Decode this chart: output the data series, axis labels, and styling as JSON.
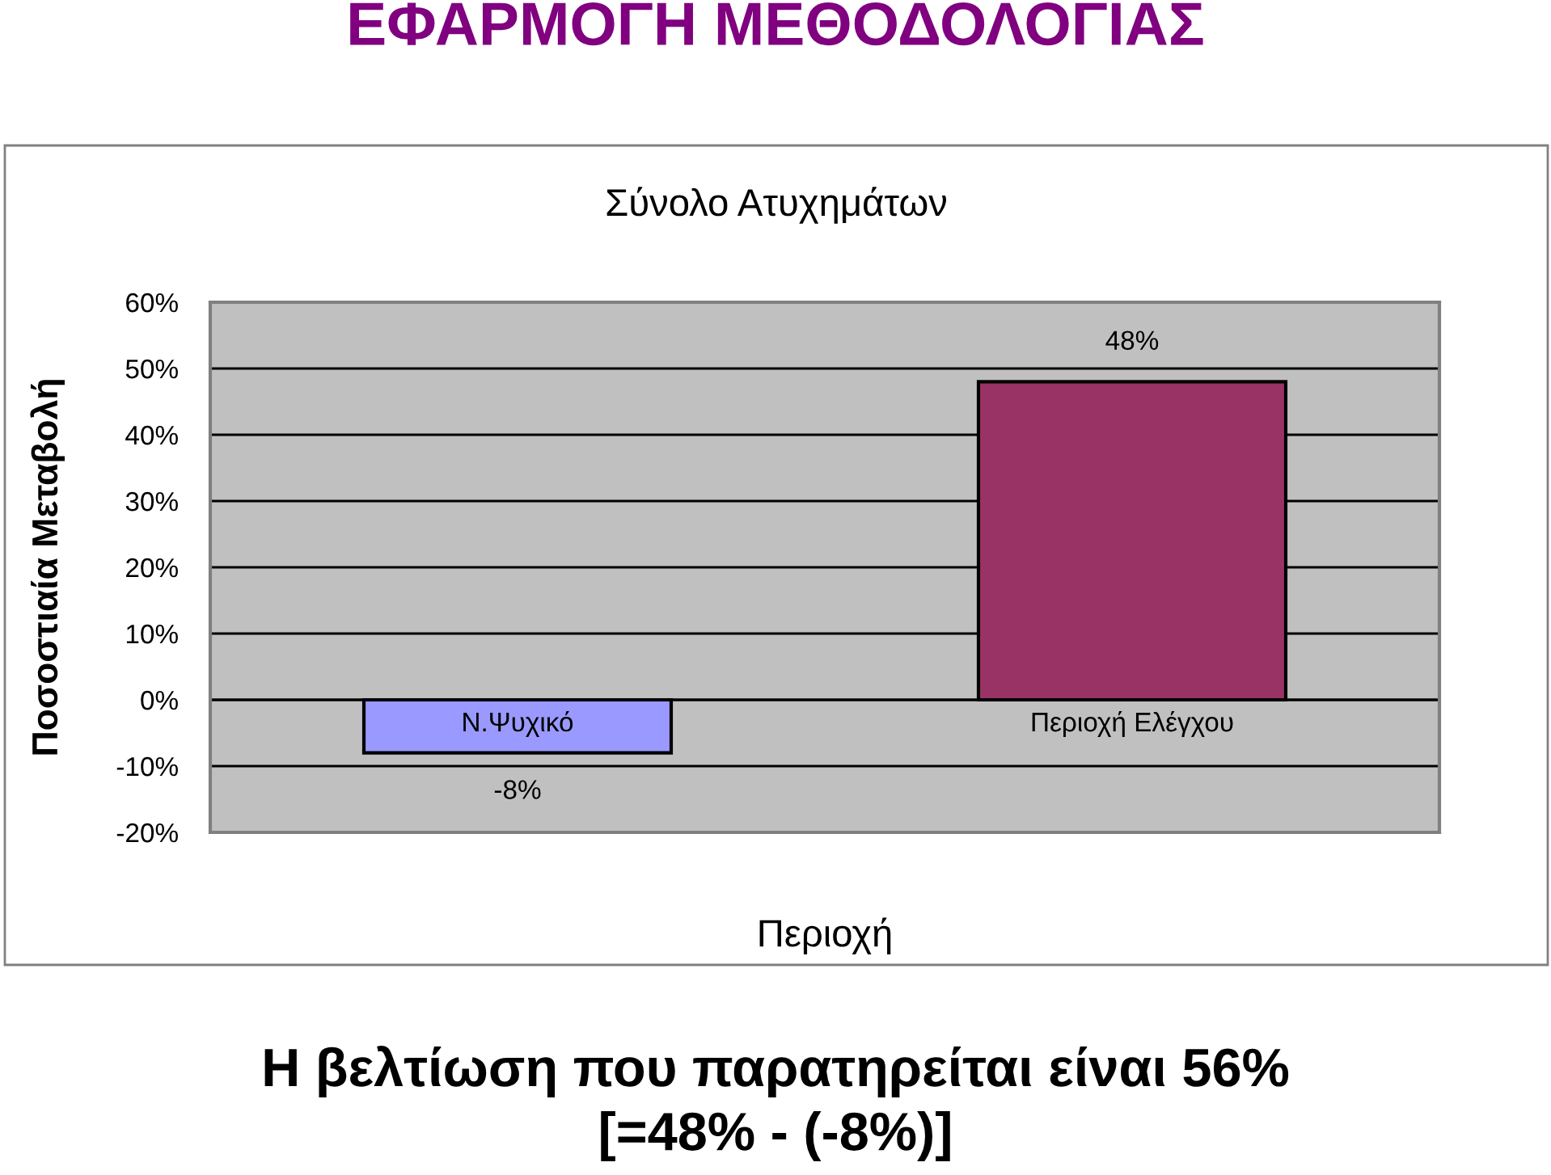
{
  "chart_data": {
    "type": "bar",
    "title": "ΕΦΑΡΜΟΓΗ ΜΕΘΟΔΟΛΟΓΙΑΣ",
    "subtitle": "Σύνολο Ατυχημάτων",
    "xlabel": "Περιοχή",
    "ylabel": "Ποσοστιαία Μεταβολή",
    "categories": [
      "Ν.Ψυχικό",
      "Περιοχή Ελέγχου"
    ],
    "values": [
      -8,
      48
    ],
    "colors": [
      "#9999ff",
      "#993366"
    ],
    "value_labels": [
      "-8%",
      "48%"
    ],
    "ylim": [
      -20,
      60
    ],
    "yticks": [
      {
        "value": -20,
        "label": "-20%"
      },
      {
        "value": -10,
        "label": "-10%"
      },
      {
        "value": 0,
        "label": "0%"
      },
      {
        "value": 10,
        "label": "10%"
      },
      {
        "value": 20,
        "label": "20%"
      },
      {
        "value": 30,
        "label": "30%"
      },
      {
        "value": 40,
        "label": "40%"
      },
      {
        "value": 50,
        "label": "50%"
      },
      {
        "value": 60,
        "label": "60%"
      }
    ],
    "grid": "y",
    "annotations": [
      "Η βελτίωση που παρατηρείται είναι 56%",
      "[=48% - (-8%)]"
    ]
  }
}
